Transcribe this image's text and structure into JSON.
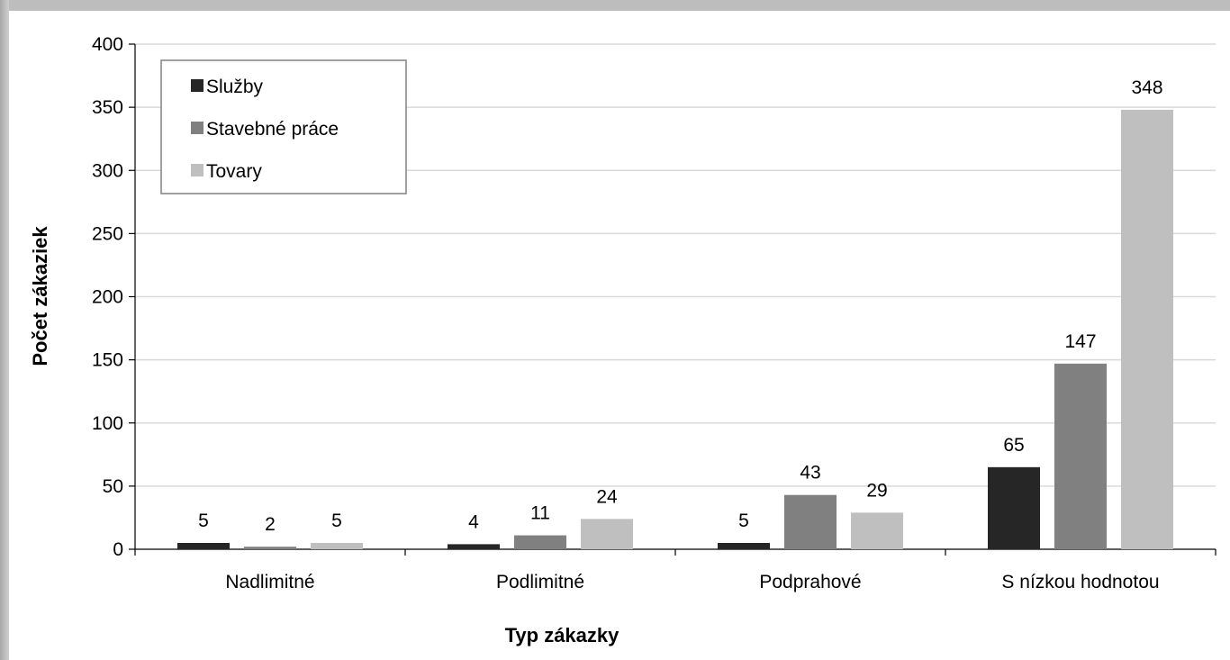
{
  "chart_data": {
    "type": "bar",
    "title": "",
    "xlabel": "Typ zákazky",
    "ylabel": "Počet zákaziek",
    "categories": [
      "Nadlimitné",
      "Podlimitné",
      "Podprahové",
      "S nízkou hodnotou"
    ],
    "series": [
      {
        "name": "Služby",
        "values": [
          5,
          4,
          5,
          65
        ],
        "color": "#262626"
      },
      {
        "name": "Stavebné práce",
        "values": [
          2,
          11,
          43,
          147
        ],
        "color": "#808080"
      },
      {
        "name": "Tovary",
        "values": [
          5,
          24,
          29,
          348
        ],
        "color": "#bfbfbf"
      }
    ],
    "ylim": [
      0,
      400
    ],
    "yticks": [
      0,
      50,
      100,
      150,
      200,
      250,
      300,
      350,
      400
    ],
    "grid": true,
    "legend_position": "top-left",
    "data_labels": true
  }
}
